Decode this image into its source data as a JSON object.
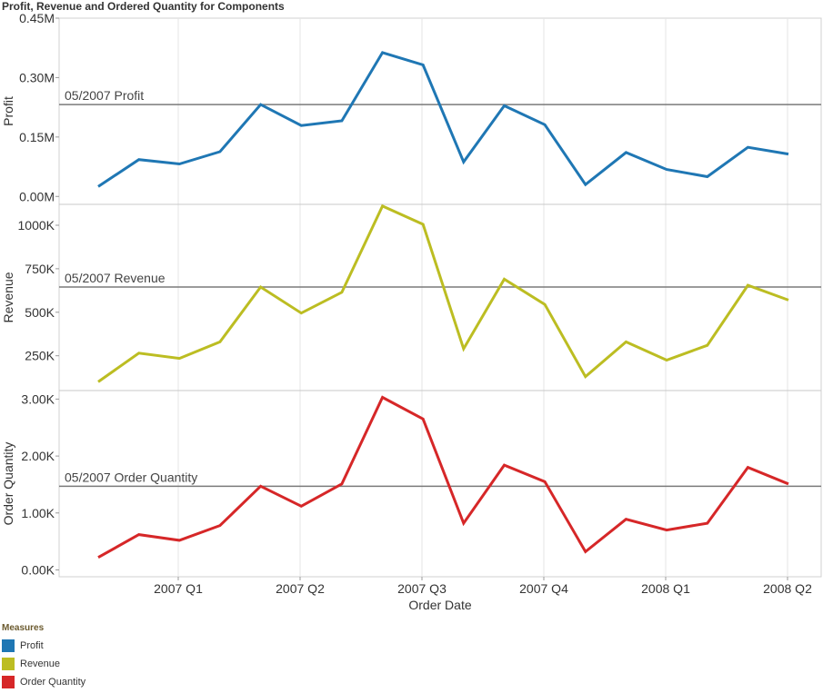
{
  "title": "Profit, Revenue and Ordered Quantity for Components",
  "chart_data": {
    "type": "line",
    "x_axis": {
      "label": "Order Date",
      "ticks": [
        "2007 Q1",
        "2007 Q2",
        "2007 Q3",
        "2007 Q4",
        "2008 Q1",
        "2008 Q2"
      ]
    },
    "grid": true,
    "legend_position": "bottom-left",
    "x": [
      "Oct 2006",
      "Nov 2006",
      "Dec 2006",
      "Jan 2007",
      "Feb 2007",
      "Mar 2007",
      "Apr 2007",
      "May 2007",
      "Jun 2007",
      "Jul 2007",
      "Aug 2007",
      "Sep 2007",
      "Oct 2007",
      "Nov 2007",
      "Dec 2007",
      "Jan 2008",
      "Feb 2008",
      "Mar 2008"
    ],
    "panels": [
      {
        "series_name": "Profit",
        "ylabel": "Profit",
        "color": "#1f77b4",
        "ylim": [
          -0.02,
          0.45
        ],
        "y_ticks": [
          0,
          0.15,
          0.3,
          0.45
        ],
        "y_tick_labels": [
          "0.00M",
          "0.15M",
          "0.30M",
          "0.45M"
        ],
        "values": [
          0.025,
          0.093,
          0.082,
          0.113,
          0.232,
          0.179,
          0.191,
          0.363,
          0.332,
          0.087,
          0.229,
          0.181,
          0.03,
          0.111,
          0.068,
          0.05,
          0.124,
          0.107
        ],
        "reference_line": {
          "label": "05/2007 Profit",
          "value": 0.232
        }
      },
      {
        "series_name": "Revenue",
        "ylabel": "Revenue",
        "color": "#bcbd22",
        "ylim": [
          50,
          1120
        ],
        "y_ticks": [
          250,
          500,
          750,
          1000
        ],
        "y_tick_labels": [
          "250K",
          "500K",
          "750K",
          "1000K"
        ],
        "values": [
          100,
          265,
          235,
          330,
          645,
          495,
          615,
          1110,
          1005,
          290,
          690,
          545,
          130,
          330,
          225,
          310,
          655,
          570
        ],
        "reference_line": {
          "label": "05/2007 Revenue",
          "value": 645
        }
      },
      {
        "series_name": "Order Quantity",
        "ylabel": "Order Quantity",
        "color": "#d62728",
        "ylim": [
          -0.12,
          3.15
        ],
        "y_ticks": [
          0,
          1,
          2,
          3
        ],
        "y_tick_labels": [
          "0.00K",
          "1.00K",
          "2.00K",
          "3.00K"
        ],
        "values": [
          0.22,
          0.62,
          0.52,
          0.78,
          1.47,
          1.12,
          1.51,
          3.03,
          2.65,
          0.82,
          1.84,
          1.55,
          0.32,
          0.89,
          0.7,
          0.82,
          1.8,
          1.51
        ],
        "reference_line": {
          "label": "05/2007 Order Quantity",
          "value": 1.47
        }
      }
    ]
  },
  "legend": {
    "title": "Measures",
    "items": [
      {
        "label": "Profit",
        "color": "#1f77b4"
      },
      {
        "label": "Revenue",
        "color": "#bcbd22"
      },
      {
        "label": "Order Quantity",
        "color": "#d62728"
      }
    ]
  }
}
